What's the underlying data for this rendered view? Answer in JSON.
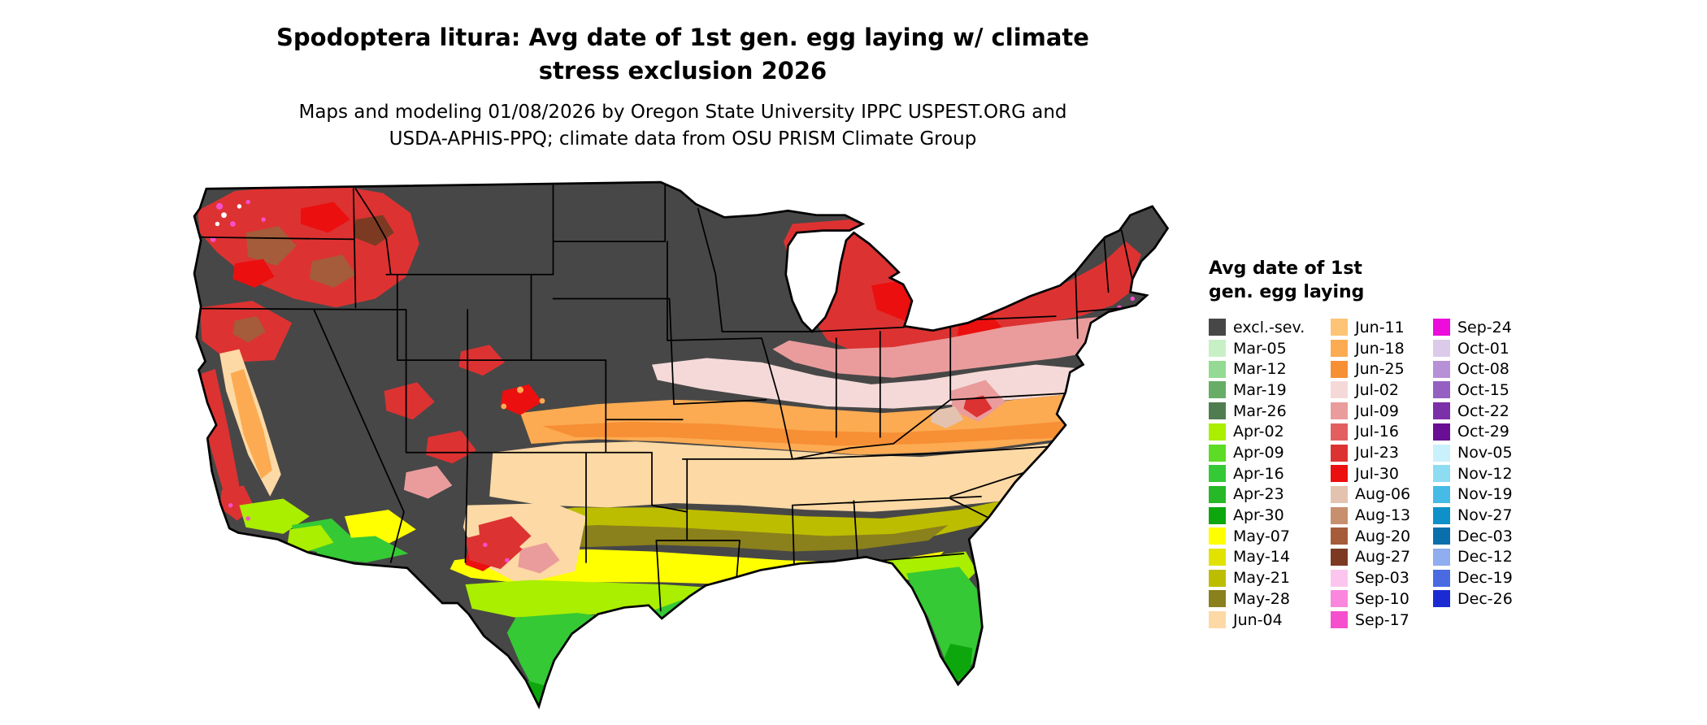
{
  "title": {
    "line1": "Spodoptera litura: Avg date of 1st gen. egg laying w/ climate",
    "line2": "stress exclusion 2026"
  },
  "subtitle": {
    "line1": "Maps and modeling 01/08/2026 by Oregon State University IPPC USPEST.ORG and",
    "line2": "USDA-APHIS-PPQ; climate data from OSU PRISM Climate Group"
  },
  "legend": {
    "title_line1": "Avg date of 1st",
    "title_line2": "gen. egg laying",
    "columns": [
      [
        {
          "label": "excl.-sev.",
          "color": "#474747"
        },
        {
          "label": "Mar-05",
          "color": "#c7f0c7"
        },
        {
          "label": "Mar-12",
          "color": "#94da94"
        },
        {
          "label": "Mar-19",
          "color": "#67ad67"
        },
        {
          "label": "Mar-26",
          "color": "#4f7d50"
        },
        {
          "label": "Apr-02",
          "color": "#aaee00"
        },
        {
          "label": "Apr-09",
          "color": "#5cdc25"
        },
        {
          "label": "Apr-16",
          "color": "#35c935"
        },
        {
          "label": "Apr-23",
          "color": "#26b826"
        },
        {
          "label": "Apr-30",
          "color": "#0da60d"
        },
        {
          "label": "May-07",
          "color": "#ffff00"
        },
        {
          "label": "May-14",
          "color": "#e2e200"
        },
        {
          "label": "May-21",
          "color": "#bdbd00"
        },
        {
          "label": "May-28",
          "color": "#8a801c"
        },
        {
          "label": "Jun-04",
          "color": "#fdd9a5"
        }
      ],
      [
        {
          "label": "Jun-11",
          "color": "#fdc476"
        },
        {
          "label": "Jun-18",
          "color": "#fcab52"
        },
        {
          "label": "Jun-25",
          "color": "#f78f35"
        },
        {
          "label": "Jul-02",
          "color": "#f5d9d9"
        },
        {
          "label": "Jul-09",
          "color": "#ea9c9c"
        },
        {
          "label": "Jul-16",
          "color": "#e35f5f"
        },
        {
          "label": "Jul-23",
          "color": "#dd3232"
        },
        {
          "label": "Jul-30",
          "color": "#ec0f0f"
        },
        {
          "label": "Aug-06",
          "color": "#e3c3af"
        },
        {
          "label": "Aug-13",
          "color": "#c78f6d"
        },
        {
          "label": "Aug-20",
          "color": "#a45c3a"
        },
        {
          "label": "Aug-27",
          "color": "#7d3a23"
        },
        {
          "label": "Sep-03",
          "color": "#fcc5ee"
        },
        {
          "label": "Sep-10",
          "color": "#fa86dd"
        },
        {
          "label": "Sep-17",
          "color": "#f64fcd"
        }
      ],
      [
        {
          "label": "Sep-24",
          "color": "#ec0cdb"
        },
        {
          "label": "Oct-01",
          "color": "#dccaea"
        },
        {
          "label": "Oct-08",
          "color": "#b791d7"
        },
        {
          "label": "Oct-15",
          "color": "#9560c2"
        },
        {
          "label": "Oct-22",
          "color": "#7b2fa9"
        },
        {
          "label": "Oct-29",
          "color": "#690f93"
        },
        {
          "label": "Nov-05",
          "color": "#c9f1fb"
        },
        {
          "label": "Nov-12",
          "color": "#8edcf2"
        },
        {
          "label": "Nov-19",
          "color": "#45bbe5"
        },
        {
          "label": "Nov-27",
          "color": "#0f90c9"
        },
        {
          "label": "Dec-03",
          "color": "#0b6fae"
        },
        {
          "label": "Dec-12",
          "color": "#8fadef"
        },
        {
          "label": "Dec-19",
          "color": "#4a6ae2"
        },
        {
          "label": "Dec-26",
          "color": "#1b2bd4"
        }
      ]
    ]
  },
  "map_colors": {
    "excluded": "#474747",
    "red": "#dd3232",
    "bright_red": "#ec0f0f",
    "pink": "#ea9c9c",
    "pale_pink": "#f5d9d9",
    "light_orange": "#fdc476",
    "orange": "#fcab52",
    "deep_orange": "#f78f35",
    "tan": "#fdd9a5",
    "olive": "#bdbd00",
    "dark_olive": "#8a801c",
    "yellow": "#ffff00",
    "chartreuse": "#aaee00",
    "green": "#35c935",
    "dark_green": "#0da60d",
    "brown": "#a45c3a",
    "dark_brown": "#7d3a23",
    "magenta": "#f64fcd",
    "aug_tan": "#e3c3af",
    "white": "#ffffff"
  }
}
